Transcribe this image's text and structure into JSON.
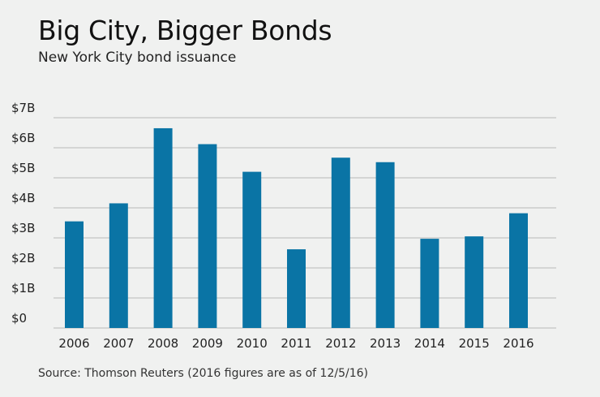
{
  "chart_data": {
    "type": "bar",
    "title": "Big City, Bigger Bonds",
    "subtitle": "New York City bond issuance",
    "source": "Source: Thomson Reuters (2016 figures are as of 12/5/16)",
    "categories": [
      "2006",
      "2007",
      "2008",
      "2009",
      "2010",
      "2011",
      "2012",
      "2013",
      "2014",
      "2015",
      "2016"
    ],
    "values": [
      3.55,
      4.15,
      6.65,
      6.12,
      5.2,
      2.62,
      5.67,
      5.52,
      2.97,
      3.05,
      3.82
    ],
    "yticks": [
      "$0",
      "$1B",
      "$2B",
      "$3B",
      "$4B",
      "$5B",
      "$6B",
      "$7B"
    ],
    "ylim": [
      0,
      7
    ],
    "xlabel": "",
    "ylabel": "",
    "grid": true,
    "bar_color": "#0a74a5",
    "grid_color": "#b8b9b8"
  }
}
